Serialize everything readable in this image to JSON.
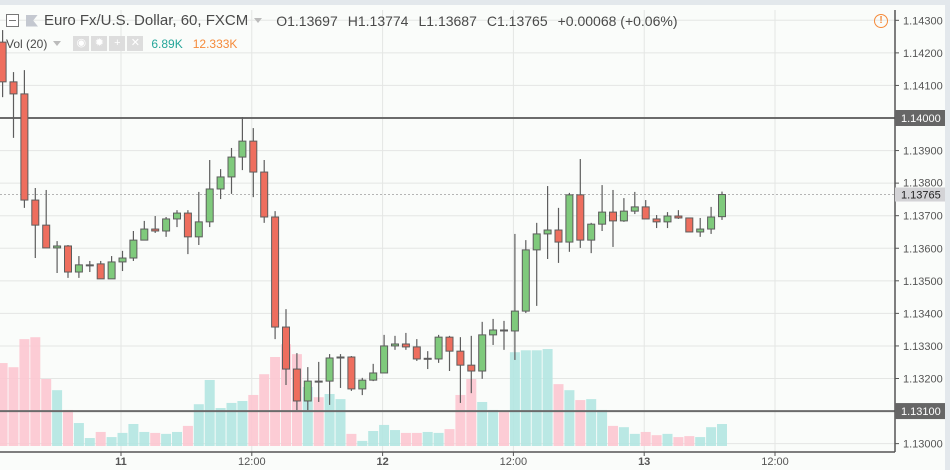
{
  "header": {
    "symbol": "Euro Fx/U.S. Dollar, 60, FXCM",
    "ohlc": [
      {
        "label": "O",
        "value": "1.13697"
      },
      {
        "label": "H",
        "value": "1.13774"
      },
      {
        "label": "L",
        "value": "1.13687"
      },
      {
        "label": "C",
        "value": "1.13765"
      }
    ],
    "change": "+0.00068 (+0.06%)"
  },
  "volume_legend": {
    "label": "Vol (20)",
    "value": "6.89K",
    "ma_value": "12.333K",
    "value_color": "#26a69a",
    "ma_color": "#f58a3a",
    "buttons": [
      "eye-icon",
      "gear-icon",
      "plus-icon",
      "close-icon"
    ]
  },
  "colors": {
    "up": "#7fca7c",
    "down": "#ee6e5e",
    "volume_up": "#b3e5e1",
    "volume_down": "#fcc7d0",
    "level_line": "#6b6b6b"
  },
  "chart_data": {
    "type": "candlestick",
    "interval": "60",
    "price_ticks": [
      "1.14300",
      "1.14200",
      "1.14100",
      "1.14000",
      "1.13900",
      "1.13800",
      "1.13700",
      "1.13600",
      "1.13500",
      "1.13400",
      "1.13300",
      "1.13200",
      "1.13100",
      "1.13000"
    ],
    "time_ticks": [
      {
        "label": "11",
        "time": "11 00:00",
        "bold": true
      },
      {
        "label": "12:00",
        "time": "11 12:00",
        "bold": false
      },
      {
        "label": "12",
        "time": "12 00:00",
        "bold": true
      },
      {
        "label": "12:00",
        "time": "12 12:00",
        "bold": false
      },
      {
        "label": "13",
        "time": "13 00:00",
        "bold": true
      },
      {
        "label": "12:00",
        "time": "13 12:00",
        "bold": false
      }
    ],
    "horizontal_levels": [
      "1.14000",
      "1.13100"
    ],
    "last_price": "1.13765",
    "ylim": [
      1.1297,
      1.1433
    ],
    "columns": [
      "time",
      "open",
      "high",
      "low",
      "close",
      "volume_k"
    ],
    "candles": [
      [
        "10 13:00",
        1.14233,
        1.1427,
        1.14064,
        1.14111,
        26.0
      ],
      [
        "10 14:00",
        1.14111,
        1.14141,
        1.13939,
        1.14074,
        24.7
      ],
      [
        "10 15:00",
        1.14074,
        1.14147,
        1.13724,
        1.13748,
        33.5
      ],
      [
        "10 16:00",
        1.13748,
        1.13785,
        1.1357,
        1.13671,
        34.1
      ],
      [
        "10 17:00",
        1.13671,
        1.13779,
        1.13601,
        1.13601,
        21.0
      ],
      [
        "10 18:00",
        1.13601,
        1.13622,
        1.13524,
        1.13607,
        17.5
      ],
      [
        "10 19:00",
        1.13607,
        1.1361,
        1.13509,
        1.13527,
        11.3
      ],
      [
        "10 20:00",
        1.13527,
        1.13576,
        1.13509,
        1.13549,
        7.2
      ],
      [
        "10 21:00",
        1.13549,
        1.13561,
        1.13527,
        1.13549,
        2.5
      ],
      [
        "10 22:00",
        1.13552,
        1.13561,
        1.13506,
        1.13506,
        4.4
      ],
      [
        "10 23:00",
        1.13506,
        1.13576,
        1.13506,
        1.13558,
        2.8
      ],
      [
        "11 00:00",
        1.13558,
        1.13592,
        1.1353,
        1.1357,
        4.1
      ],
      [
        "11 01:00",
        1.1357,
        1.13653,
        1.13561,
        1.13625,
        6.9
      ],
      [
        "11 02:00",
        1.13625,
        1.13684,
        1.13625,
        1.13659,
        4.4
      ],
      [
        "11 03:00",
        1.13659,
        1.13699,
        1.13647,
        1.13653,
        4.1
      ],
      [
        "11 04:00",
        1.13653,
        1.13696,
        1.13635,
        1.1369,
        3.8
      ],
      [
        "11 05:00",
        1.1369,
        1.13717,
        1.13665,
        1.13708,
        4.4
      ],
      [
        "11 06:00",
        1.13708,
        1.13717,
        1.13582,
        1.13635,
        6.3
      ],
      [
        "11 07:00",
        1.13635,
        1.13773,
        1.1361,
        1.13681,
        13.1
      ],
      [
        "11 08:00",
        1.13681,
        1.13871,
        1.13665,
        1.13782,
        20.7
      ],
      [
        "11 09:00",
        1.13782,
        1.13843,
        1.13751,
        1.13819,
        11.9
      ],
      [
        "11 10:00",
        1.13819,
        1.13908,
        1.13767,
        1.1388,
        13.5
      ],
      [
        "11 11:00",
        1.1388,
        1.14003,
        1.1384,
        1.13929,
        14.1
      ],
      [
        "11 12:00",
        1.13929,
        1.13969,
        1.13757,
        1.13834,
        16.0
      ],
      [
        "11 13:00",
        1.13834,
        1.13871,
        1.13678,
        1.13696,
        22.5
      ],
      [
        "11 14:00",
        1.13696,
        1.13714,
        1.13321,
        1.13358,
        27.9
      ],
      [
        "11 15:00",
        1.13358,
        1.13413,
        1.1318,
        1.13229,
        31.9
      ],
      [
        "11 16:00",
        1.13229,
        1.13278,
        1.13103,
        1.13131,
        28.8
      ],
      [
        "11 17:00",
        1.13131,
        1.13235,
        1.13103,
        1.13192,
        18.5
      ],
      [
        "11 18:00",
        1.13192,
        1.13251,
        1.13128,
        1.1319,
        15.3
      ],
      [
        "11 19:00",
        1.13192,
        1.13275,
        1.13119,
        1.13263,
        16.3
      ],
      [
        "11 20:00",
        1.13263,
        1.13275,
        1.13171,
        1.13266,
        14.7
      ],
      [
        "11 21:00",
        1.13266,
        1.13269,
        1.13162,
        1.13168,
        3.8
      ],
      [
        "11 22:00",
        1.13168,
        1.13202,
        1.13149,
        1.13195,
        1.6
      ],
      [
        "11 23:00",
        1.13195,
        1.13245,
        1.13192,
        1.13217,
        4.7
      ],
      [
        "12 00:00",
        1.13217,
        1.13334,
        1.13217,
        1.133,
        6.6
      ],
      [
        "12 01:00",
        1.133,
        1.13331,
        1.13288,
        1.13306,
        5.0
      ],
      [
        "12 02:00",
        1.13306,
        1.1334,
        1.13288,
        1.13297,
        4.1
      ],
      [
        "12 03:00",
        1.13297,
        1.13321,
        1.13254,
        1.1326,
        4.1
      ],
      [
        "12 04:00",
        1.1326,
        1.13284,
        1.13229,
        1.13262,
        4.4
      ],
      [
        "12 05:00",
        1.1326,
        1.13334,
        1.13248,
        1.13327,
        4.1
      ],
      [
        "12 06:00",
        1.13327,
        1.13331,
        1.13223,
        1.13284,
        5.3
      ],
      [
        "12 07:00",
        1.13284,
        1.13327,
        1.13125,
        1.13241,
        16.0
      ],
      [
        "12 08:00",
        1.13241,
        1.13331,
        1.13155,
        1.13223,
        21.0
      ],
      [
        "12 09:00",
        1.13223,
        1.13374,
        1.13199,
        1.13334,
        13.8
      ],
      [
        "12 10:00",
        1.13334,
        1.13383,
        1.13303,
        1.13349,
        11.3
      ],
      [
        "12 11:00",
        1.13349,
        1.13377,
        1.13288,
        1.13346,
        10.6
      ],
      [
        "12 12:00",
        1.13346,
        1.13644,
        1.13257,
        1.13407,
        29.4
      ],
      [
        "12 13:00",
        1.13407,
        1.13625,
        1.13401,
        1.13595,
        30.0
      ],
      [
        "12 14:00",
        1.13595,
        1.13678,
        1.13423,
        1.13644,
        30.0
      ],
      [
        "12 15:00",
        1.13644,
        1.13791,
        1.13567,
        1.13656,
        30.4
      ],
      [
        "12 16:00",
        1.13656,
        1.13724,
        1.13555,
        1.13619,
        19.4
      ],
      [
        "12 17:00",
        1.13619,
        1.1377,
        1.13589,
        1.13764,
        17.5
      ],
      [
        "12 18:00",
        1.13764,
        1.13874,
        1.13601,
        1.13625,
        14.4
      ],
      [
        "12 19:00",
        1.13625,
        1.13678,
        1.13585,
        1.13674,
        14.7
      ],
      [
        "12 20:00",
        1.13674,
        1.13794,
        1.13653,
        1.13711,
        11.3
      ],
      [
        "12 21:00",
        1.13711,
        1.13779,
        1.13604,
        1.13684,
        6.3
      ],
      [
        "12 22:00",
        1.13684,
        1.13754,
        1.13681,
        1.13714,
        5.9
      ],
      [
        "12 23:00",
        1.13714,
        1.13773,
        1.13705,
        1.13727,
        3.8
      ],
      [
        "13 00:00",
        1.13727,
        1.13748,
        1.1369,
        1.1369,
        4.4
      ],
      [
        "13 01:00",
        1.1369,
        1.13702,
        1.13662,
        1.13681,
        3.4
      ],
      [
        "13 02:00",
        1.13681,
        1.13711,
        1.13662,
        1.13699,
        3.8
      ],
      [
        "13 03:00",
        1.13699,
        1.13717,
        1.1369,
        1.13693,
        2.8
      ],
      [
        "13 04:00",
        1.13693,
        1.13693,
        1.1365,
        1.1365,
        3.1
      ],
      [
        "13 05:00",
        1.1365,
        1.13693,
        1.13635,
        1.13659,
        2.8
      ],
      [
        "13 06:00",
        1.13659,
        1.13727,
        1.13644,
        1.13696,
        5.9
      ],
      [
        "13 07:00",
        1.13697,
        1.13774,
        1.13687,
        1.13765,
        6.89
      ]
    ]
  }
}
